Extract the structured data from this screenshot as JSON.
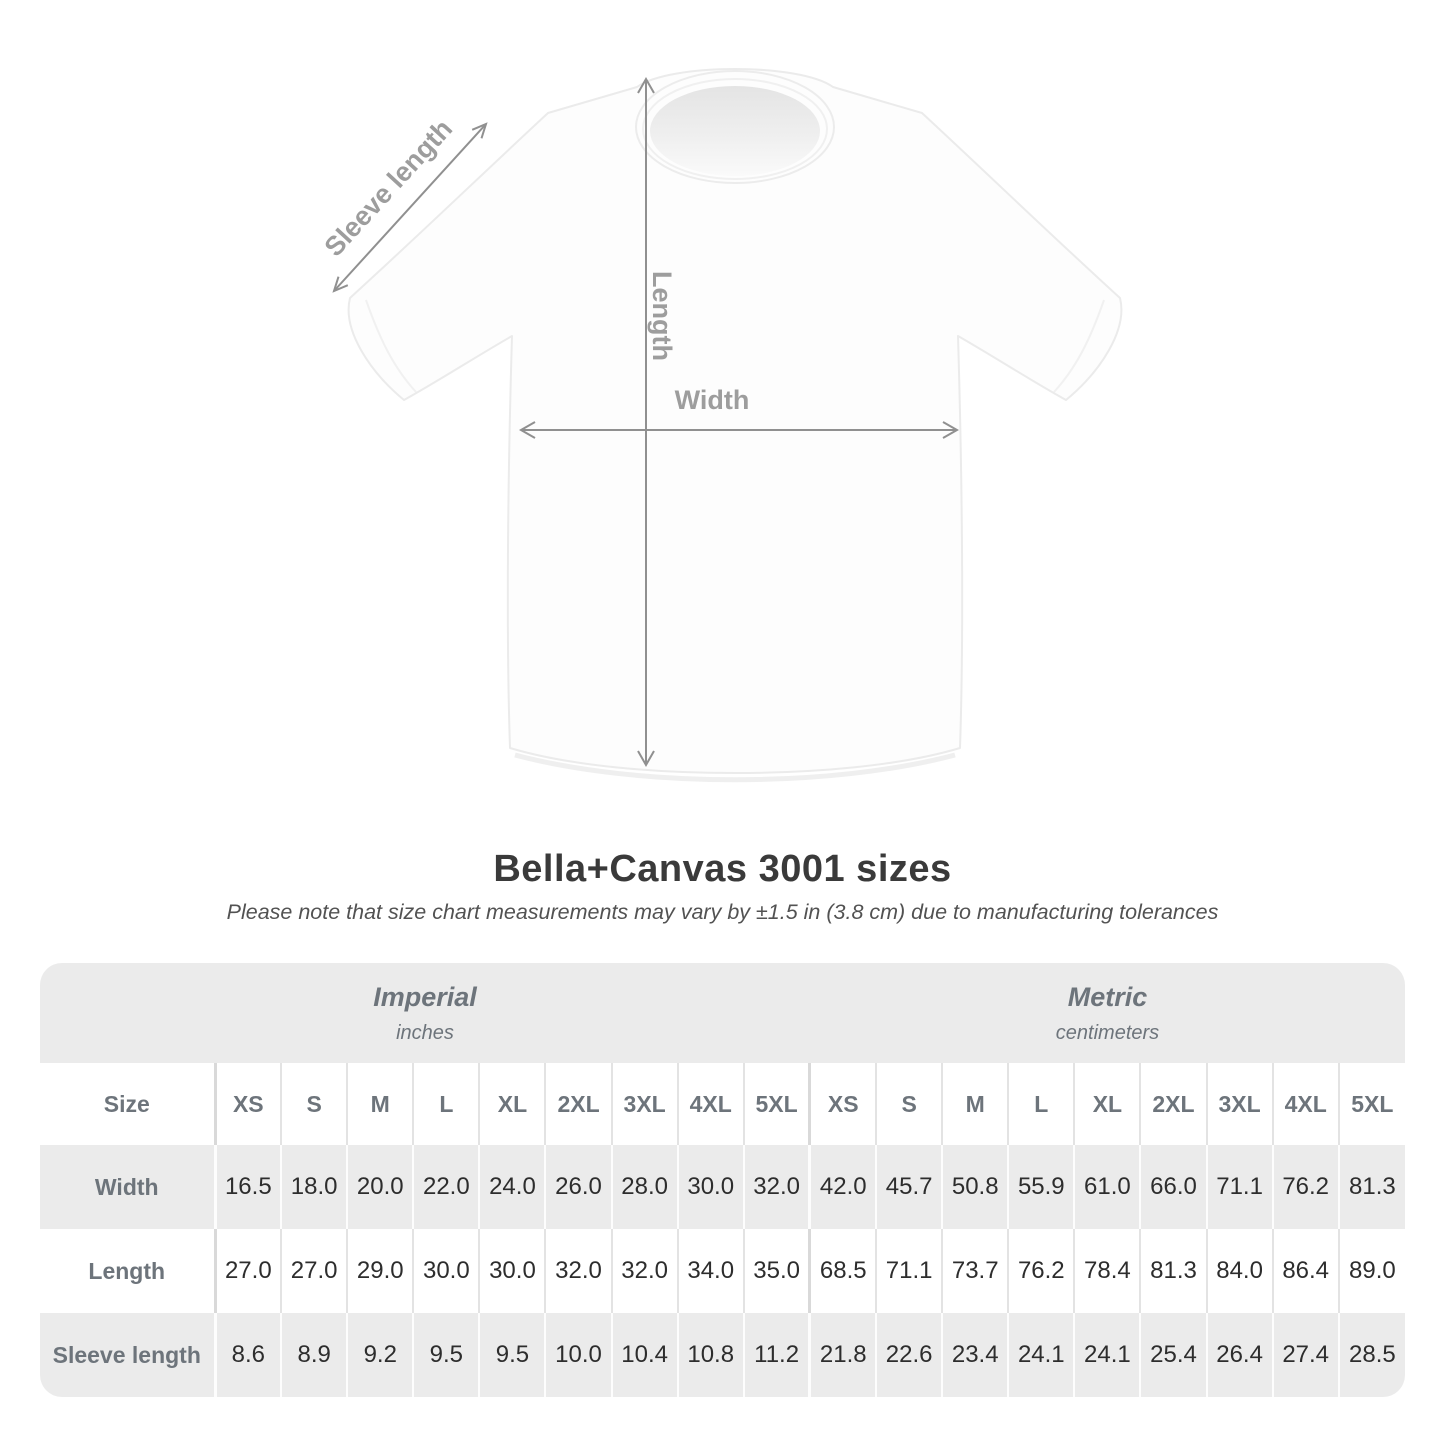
{
  "diagram": {
    "sleeve_label": "Sleeve length",
    "length_label": "Length",
    "width_label": "Width"
  },
  "heading": {
    "title": "Bella+Canvas 3001 sizes",
    "note": "Please note that size chart measurements may vary by ±1.5 in (3.8 cm) due to manufacturing tolerances"
  },
  "table": {
    "corner_label": "Size",
    "groups": [
      {
        "label": "Imperial",
        "sublabel": "inches"
      },
      {
        "label": "Metric",
        "sublabel": "centimeters"
      }
    ]
  },
  "chart_data": {
    "type": "table",
    "title": "Bella+Canvas 3001 sizes",
    "note": "Please note that size chart measurements may vary by ±1.5 in (3.8 cm) due to manufacturing tolerances",
    "unit_groups": [
      "Imperial (inches)",
      "Metric (centimeters)"
    ],
    "sizes": [
      "XS",
      "S",
      "M",
      "L",
      "XL",
      "2XL",
      "3XL",
      "4XL",
      "5XL"
    ],
    "rows": [
      {
        "label": "Width",
        "imperial": [
          "16.5",
          "18.0",
          "20.0",
          "22.0",
          "24.0",
          "26.0",
          "28.0",
          "30.0",
          "32.0"
        ],
        "metric": [
          "42.0",
          "45.7",
          "50.8",
          "55.9",
          "61.0",
          "66.0",
          "71.1",
          "76.2",
          "81.3"
        ]
      },
      {
        "label": "Length",
        "imperial": [
          "27.0",
          "27.0",
          "29.0",
          "30.0",
          "30.0",
          "32.0",
          "32.0",
          "34.0",
          "35.0"
        ],
        "metric": [
          "68.5",
          "71.1",
          "73.7",
          "76.2",
          "78.4",
          "81.3",
          "84.0",
          "86.4",
          "89.0"
        ]
      },
      {
        "label": "Sleeve length",
        "imperial": [
          "8.6",
          "8.9",
          "9.2",
          "9.5",
          "9.5",
          "10.0",
          "10.4",
          "10.8",
          "11.2"
        ],
        "metric": [
          "21.8",
          "22.6",
          "23.4",
          "24.1",
          "24.1",
          "25.4",
          "26.4",
          "27.4",
          "28.5"
        ]
      }
    ]
  }
}
